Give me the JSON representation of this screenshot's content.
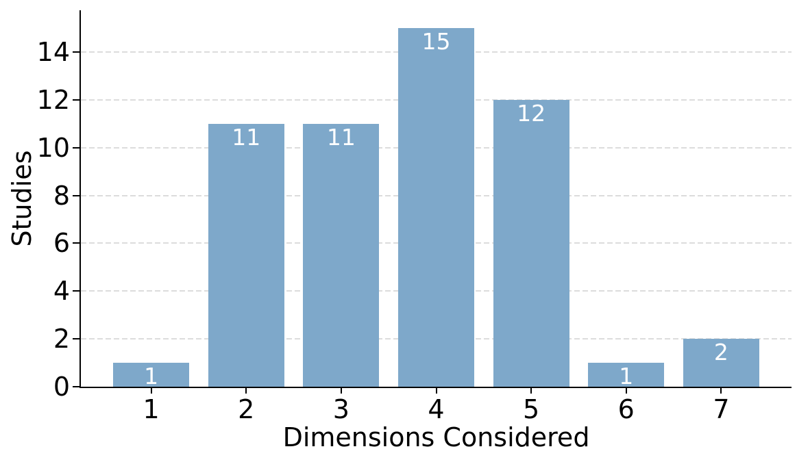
{
  "chart_data": {
    "type": "bar",
    "title": "",
    "xlabel": "Dimensions Considered",
    "ylabel": "Studies",
    "categories": [
      "1",
      "2",
      "3",
      "4",
      "5",
      "6",
      "7"
    ],
    "values": [
      1,
      11,
      11,
      15,
      12,
      1,
      2
    ],
    "bar_value_labels": [
      "1",
      "11",
      "11",
      "15",
      "12",
      "1",
      "2"
    ],
    "yticks": [
      0,
      2,
      4,
      6,
      8,
      10,
      12,
      14
    ],
    "ylim": [
      0,
      15.75
    ],
    "bar_width_fraction": 0.8,
    "x_margin_fraction": 0.05,
    "grid": true,
    "grid_axis": "y",
    "grid_linestyle": "dashed",
    "legend_position": "none",
    "colors": {
      "bar_fill": "#7ea8ca",
      "bar_value_label": "#ffffff",
      "axis_spine": "#000000",
      "tick_and_text": "#000000",
      "grid_line": "#dcdcdc",
      "background": "#ffffff"
    }
  }
}
